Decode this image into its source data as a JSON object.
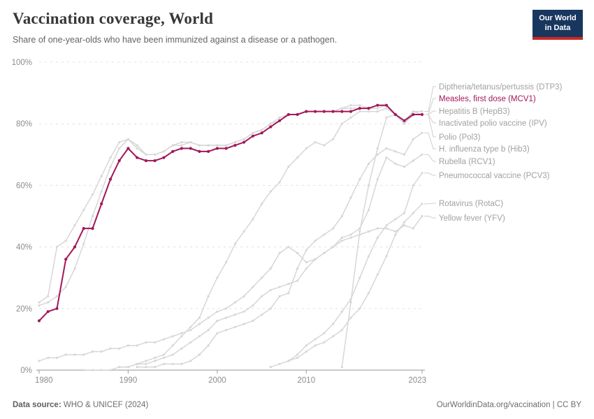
{
  "header": {
    "title": "Vaccination coverage, World",
    "subtitle": "Share of one-year-olds who have been immunized against a disease or a pathogen.",
    "logo": {
      "line1": "Our World",
      "line2": "in Data"
    }
  },
  "footer": {
    "source_label": "Data source:",
    "source_text": " WHO & UNICEF (2024)",
    "attribution": "OurWorldinData.org/vaccination | CC BY"
  },
  "colors": {
    "highlight": "#A2175A",
    "muted_line": "#D7D7D7",
    "legend_muted_text": "#A1A1A1",
    "axis_text": "#8C8C8C",
    "gridline": "#E0E0E0",
    "axis_line": "#ABABAB",
    "connector": "#CFCFCF",
    "logo_bg": "#18375F",
    "logo_accent": "#CB2824"
  },
  "chart_data": {
    "type": "line",
    "title": "Vaccination coverage, World",
    "xlabel": "",
    "ylabel": "",
    "xlim": [
      1980,
      2023
    ],
    "ylim": [
      0,
      100
    ],
    "grid": "horizontal-dashed",
    "legend_position": "right-of-plot, labels connected to line ends",
    "x_axis": {
      "ticks": [
        1980,
        1990,
        2000,
        2010,
        2023
      ]
    },
    "y_axis": {
      "ticks": [
        0,
        20,
        40,
        60,
        80,
        100
      ],
      "unit": "%",
      "tick_labels": [
        "0%",
        "20%",
        "40%",
        "60%",
        "80%",
        "100%"
      ]
    },
    "series": [
      {
        "id": "dtp3",
        "label": "Diptheria/tetanus/pertussis (DTP3)",
        "highlighted": false,
        "start_year": 1980,
        "values": [
          22,
          24,
          40,
          42,
          47,
          52,
          57,
          63,
          69,
          74,
          75,
          72,
          70,
          70,
          71,
          73,
          74,
          74,
          73,
          73,
          73,
          73,
          74,
          75,
          77,
          78,
          80,
          81,
          83,
          83,
          84,
          84,
          84,
          84,
          85,
          86,
          86,
          85,
          86,
          86,
          83,
          81,
          84,
          84
        ]
      },
      {
        "id": "mcv1",
        "label": "Measles, first dose (MCV1)",
        "highlighted": true,
        "start_year": 1980,
        "values": [
          16,
          19,
          20,
          36,
          40,
          46,
          46,
          54,
          62,
          68,
          72,
          69,
          68,
          68,
          69,
          71,
          72,
          72,
          71,
          71,
          72,
          72,
          73,
          74,
          76,
          77,
          79,
          81,
          83,
          83,
          84,
          84,
          84,
          84,
          84,
          84,
          85,
          85,
          86,
          86,
          83,
          81,
          83,
          83
        ]
      },
      {
        "id": "hepb3",
        "label": "Hepatitis B (HepB3)",
        "highlighted": false,
        "start_year": 1989,
        "values": [
          1,
          1,
          2,
          3,
          4,
          5,
          8,
          11,
          14,
          17,
          24,
          30,
          35,
          41,
          45,
          49,
          54,
          58,
          61,
          66,
          69,
          72,
          74,
          73,
          75,
          80,
          82,
          84,
          84,
          84,
          85,
          83,
          80,
          84,
          83
        ]
      },
      {
        "id": "ipv",
        "label": "Inactivated polio vaccine (IPV)",
        "highlighted": false,
        "start_year": 2014,
        "values": [
          1,
          22,
          45,
          60,
          72,
          82,
          83,
          80,
          83,
          83
        ]
      },
      {
        "id": "pol3",
        "label": "Polio (Pol3)",
        "highlighted": false,
        "start_year": 1980,
        "values": [
          21,
          22,
          24,
          27,
          33,
          41,
          50,
          58,
          66,
          72,
          75,
          73,
          70,
          70,
          71,
          73,
          73,
          74,
          73,
          73,
          73,
          73,
          74,
          75,
          77,
          78,
          80,
          82,
          83,
          83,
          84,
          84,
          84,
          84,
          85,
          85,
          85,
          85,
          85,
          86,
          83,
          80,
          83,
          83
        ]
      },
      {
        "id": "hib3",
        "label": "H. influenza type b (Hib3)",
        "highlighted": false,
        "start_year": 1991,
        "values": [
          1,
          1,
          1,
          2,
          2,
          2,
          3,
          5,
          8,
          12,
          13,
          14,
          15,
          16,
          18,
          20,
          24,
          25,
          33,
          39,
          42,
          44,
          46,
          50,
          56,
          62,
          67,
          70,
          72,
          71,
          70,
          75,
          77
        ]
      },
      {
        "id": "rcv1",
        "label": "Rubella (RCV1)",
        "highlighted": false,
        "start_year": 1980,
        "values": [
          3,
          4,
          4,
          5,
          5,
          5,
          6,
          6,
          7,
          7,
          8,
          8,
          9,
          9,
          10,
          11,
          12,
          13,
          15,
          17,
          19,
          20,
          22,
          24,
          27,
          30,
          33,
          38,
          40,
          38,
          35,
          36,
          38,
          40,
          43,
          44,
          46,
          52,
          62,
          69,
          67,
          66,
          68,
          70
        ]
      },
      {
        "id": "pcv3",
        "label": "Pneumococcal vaccine (PCV3)",
        "highlighted": false,
        "start_year": 2008,
        "values": [
          3,
          5,
          8,
          10,
          12,
          15,
          19,
          23,
          30,
          37,
          43,
          47,
          49,
          51,
          60,
          64
        ]
      },
      {
        "id": "rotac",
        "label": "Rotavirus (RotaC)",
        "highlighted": false,
        "start_year": 2006,
        "values": [
          1,
          2,
          3,
          4,
          6,
          8,
          9,
          11,
          13,
          17,
          20,
          25,
          31,
          37,
          44,
          48,
          51,
          54
        ]
      },
      {
        "id": "yfv",
        "label": "Yellow fever (YFV)",
        "highlighted": false,
        "start_year": 1985,
        "values": [
          0,
          0,
          0,
          0,
          1,
          1,
          2,
          2,
          3,
          4,
          5,
          7,
          9,
          11,
          13,
          16,
          17,
          18,
          19,
          21,
          24,
          26,
          27,
          28,
          29,
          33,
          36,
          38,
          40,
          42,
          43,
          44,
          45,
          46,
          46,
          45,
          47,
          46,
          50
        ]
      }
    ]
  }
}
